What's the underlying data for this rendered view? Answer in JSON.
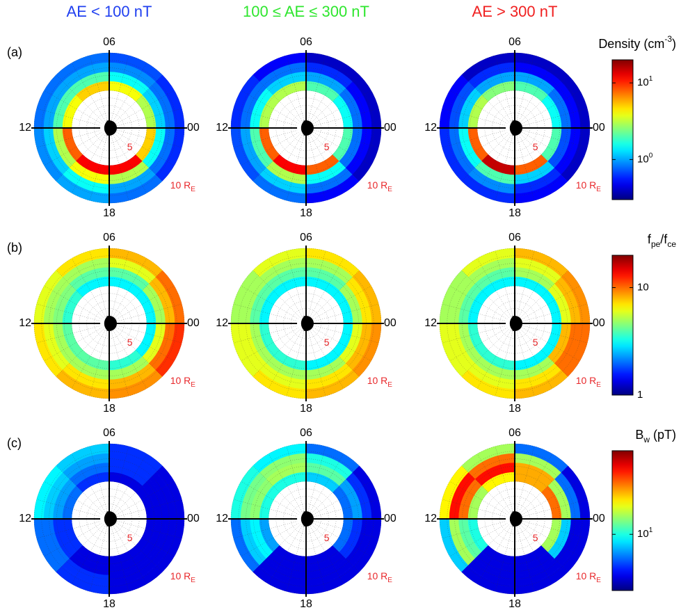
{
  "chart_data": {
    "type": "polar_heatmap_grid",
    "column_titles": [
      {
        "text": "AE < 100 nT",
        "color": "#1f3ff0"
      },
      {
        "text": "100 ≤ AE ≤ 300 nT",
        "color": "#2ee62e"
      },
      {
        "text": "AE > 300 nT",
        "color": "#f02020"
      }
    ],
    "mlt_ticks": [
      {
        "value": 0,
        "label": "00"
      },
      {
        "value": 6,
        "label": "06"
      },
      12,
      18
    ],
    "rlim": [
      0,
      10
    ],
    "rticks": [
      5,
      {
        "value": 10,
        "label": "10 R",
        "sub": "E"
      }
    ],
    "r_edges": [
      5,
      6.25,
      7.5,
      8.75,
      10
    ],
    "mlt_edges": [
      0,
      3,
      6,
      9,
      12,
      15,
      18,
      21,
      24
    ],
    "rows": [
      {
        "label": "(a)",
        "colorbar": {
          "title": [
            {
              "text": "Density (cm"
            },
            {
              "text": "-3",
              "shift": "sup"
            },
            {
              "text": ")"
            }
          ],
          "clim": [
            0.3,
            20
          ],
          "log": true,
          "ticks": [
            {
              "value": 1,
              "label": "10",
              "sup": "0"
            },
            {
              "value": 10,
              "label": "10",
              "sup": "1"
            }
          ]
        },
        "panels": [
          {
            "values": [
              [
                3,
                4,
                5,
                4,
                8,
                12,
                12,
                5
              ],
              [
                1.2,
                1.5,
                2,
                2,
                3,
                4,
                3,
                1.5
              ],
              [
                0.8,
                0.9,
                1,
                1,
                1.2,
                1.5,
                1,
                0.8
              ],
              [
                0.6,
                0.7,
                0.8,
                0.8,
                0.9,
                1,
                0.8,
                0.6
              ]
            ]
          },
          {
            "values": [
              [
                1.5,
                2,
                3,
                3,
                8,
                12,
                8,
                2
              ],
              [
                0.8,
                1,
                1.2,
                1.5,
                2,
                3,
                1.5,
                0.8
              ],
              [
                0.5,
                0.6,
                0.8,
                0.8,
                1,
                1.2,
                0.8,
                0.5
              ],
              [
                0.4,
                0.4,
                0.5,
                0.6,
                0.7,
                0.8,
                0.5,
                0.4
              ]
            ]
          },
          {
            "values": [
              [
                1.5,
                2,
                2.5,
                3,
                8,
                15,
                8,
                2
              ],
              [
                0.8,
                1,
                1,
                1.2,
                1.5,
                2,
                1.2,
                0.7
              ],
              [
                0.5,
                0.5,
                0.6,
                0.7,
                0.8,
                0.9,
                0.6,
                0.5
              ],
              [
                0.4,
                0.4,
                0.4,
                0.5,
                0.6,
                0.6,
                0.5,
                0.4
              ]
            ]
          }
        ]
      },
      {
        "label": "(b)",
        "colorbar": {
          "title": [
            {
              "text": "f"
            },
            {
              "text": "pe",
              "shift": "sub"
            },
            {
              "text": "/f"
            },
            {
              "text": "ce",
              "shift": "sub"
            }
          ],
          "clim": [
            1,
            20
          ],
          "log": true,
          "ticks": [
            1,
            10
          ]
        },
        "panels": [
          {
            "values": [
              [
                3,
                3,
                3,
                3.5,
                4,
                4,
                3.5,
                3
              ],
              [
                5,
                4,
                4,
                4.5,
                5,
                5,
                5,
                6
              ],
              [
                8,
                6,
                5,
                5,
                6,
                7,
                8,
                10
              ],
              [
                10,
                8,
                7,
                6,
                7,
                8,
                9,
                12
              ]
            ]
          },
          {
            "values": [
              [
                3,
                3,
                3,
                3,
                3.5,
                3.5,
                3,
                3
              ],
              [
                5,
                4,
                4,
                4,
                5,
                5,
                5,
                6
              ],
              [
                7,
                5,
                5,
                5,
                6,
                6,
                7,
                8
              ],
              [
                8,
                7,
                6,
                5,
                6,
                7,
                8,
                9
              ]
            ]
          },
          {
            "values": [
              [
                3,
                3,
                3,
                3,
                3.5,
                3.5,
                3,
                3
              ],
              [
                6,
                5,
                4,
                4,
                5,
                5,
                5,
                8
              ],
              [
                8,
                6,
                5,
                5,
                6,
                6,
                7,
                10
              ],
              [
                9,
                8,
                6,
                5,
                6,
                7,
                8,
                10
              ]
            ]
          }
        ]
      },
      {
        "label": "(c)",
        "colorbar": {
          "title": [
            {
              "text": "B"
            },
            {
              "text": "w",
              "shift": "sub"
            },
            {
              "text": " (pT)"
            }
          ],
          "clim": [
            3,
            60
          ],
          "log": true,
          "ticks": [
            {
              "value": 10,
              "label": "10",
              "sup": "1"
            }
          ]
        },
        "panels": [
          {
            "values": [
              [
                4,
                4,
                5,
                6,
                5,
                4,
                4,
                4
              ],
              [
                4,
                5,
                6,
                7,
                5,
                4,
                4,
                4
              ],
              [
                4,
                5,
                7,
                8,
                6,
                5,
                4,
                4
              ],
              [
                4,
                5,
                8,
                9,
                6,
                5,
                4,
                4
              ]
            ]
          },
          {
            "values": [
              [
                6,
                8,
                10,
                10,
                7,
                4,
                4,
                6
              ],
              [
                7,
                12,
                15,
                14,
                9,
                4,
                4,
                5
              ],
              [
                5,
                10,
                14,
                13,
                8,
                4,
                4,
                4
              ],
              [
                4,
                6,
                9,
                10,
                6,
                4,
                4,
                4
              ]
            ]
          },
          {
            "values": [
              [
                30,
                25,
                20,
                15,
                10,
                4,
                4,
                15
              ],
              [
                15,
                25,
                40,
                30,
                12,
                4,
                4,
                8
              ],
              [
                6,
                15,
                30,
                40,
                15,
                4,
                4,
                4
              ],
              [
                4,
                6,
                15,
                20,
                8,
                4,
                4,
                4
              ]
            ]
          }
        ]
      }
    ]
  }
}
